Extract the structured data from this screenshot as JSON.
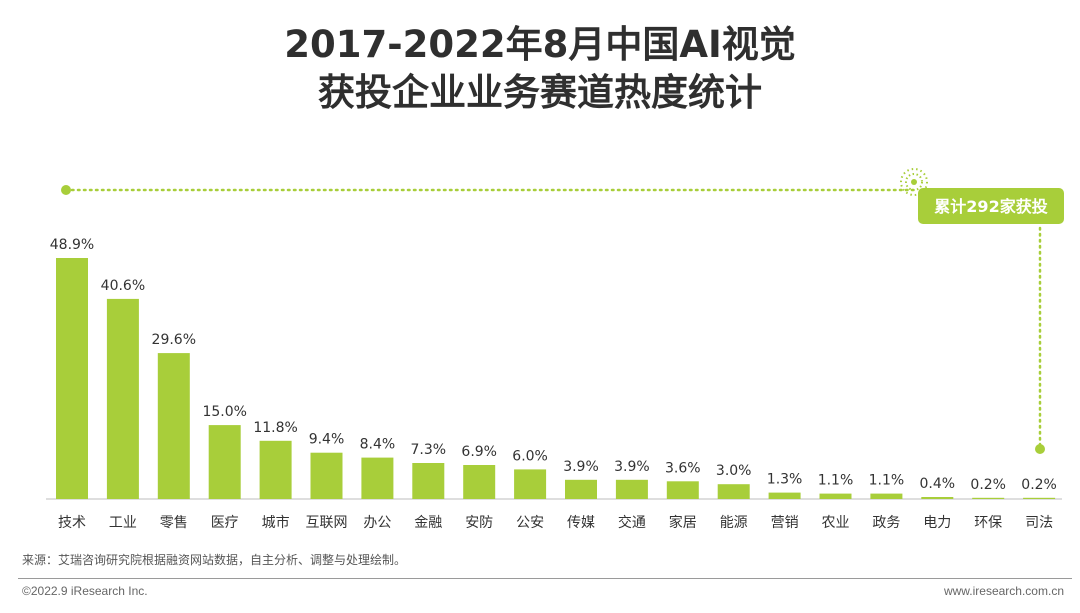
{
  "title": {
    "line1": "2017-2022年8月中国AI视觉",
    "line2": "获投企业业务赛道热度统计"
  },
  "colors": {
    "bar": "#a8ce3a",
    "accent": "#a8ce3a",
    "text": "#333333",
    "axis": "#bdbdbd"
  },
  "chart_data": {
    "type": "bar",
    "categories": [
      "技术",
      "工业",
      "零售",
      "医疗",
      "城市",
      "互联网",
      "办公",
      "金融",
      "安防",
      "公安",
      "传媒",
      "交通",
      "家居",
      "能源",
      "营销",
      "农业",
      "政务",
      "电力",
      "环保",
      "司法"
    ],
    "values": [
      48.9,
      40.6,
      29.6,
      15.0,
      11.8,
      9.4,
      8.4,
      7.3,
      6.9,
      6.0,
      3.9,
      3.9,
      3.6,
      3.0,
      1.3,
      1.1,
      1.1,
      0.4,
      0.2,
      0.2
    ],
    "value_labels": [
      "48.9%",
      "40.6%",
      "29.6%",
      "15.0%",
      "11.8%",
      "9.4%",
      "8.4%",
      "7.3%",
      "6.9%",
      "6.0%",
      "3.9%",
      "3.9%",
      "3.6%",
      "3.0%",
      "1.3%",
      "1.1%",
      "1.1%",
      "0.4%",
      "0.2%",
      "0.2%"
    ],
    "unit": "%",
    "ylim": [
      0,
      50
    ],
    "annotation": "累计292家获投"
  },
  "footer": {
    "source": "来源：艾瑞咨询研究院根据融资网站数据，自主分析、调整与处理绘制。",
    "copyright": "©2022.9 iResearch Inc.",
    "website": "www.iresearch.com.cn"
  }
}
